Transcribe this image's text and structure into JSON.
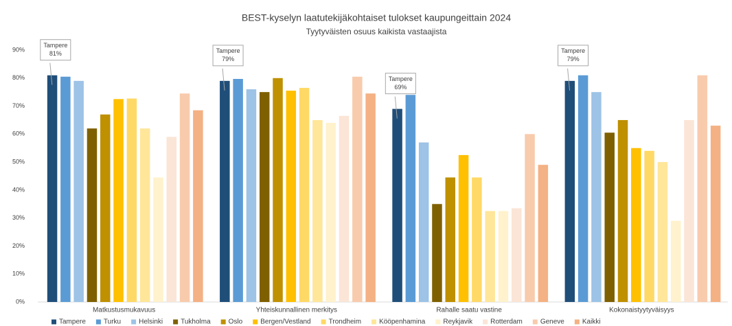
{
  "chart_data": {
    "type": "bar",
    "title": "BEST-kyselyn laatutekijäkohtaiset tulokset kaupungeittain 2024",
    "subtitle": "Tyytyväisten osuus kaikista vastaajista",
    "categories": [
      "Matkustusmukavuus",
      "Yhteiskunnallinen merkitys",
      "Rahalle saatu vastine",
      "Kokonaistyytyväisyys"
    ],
    "series": [
      {
        "name": "Tampere",
        "color": "#1f4e79",
        "values": [
          81,
          79,
          69,
          79
        ],
        "value_labels": [
          "81%",
          "79%",
          "69%",
          "79%"
        ]
      },
      {
        "name": "Turku",
        "color": "#5b9bd5",
        "values": [
          80.5,
          79.7,
          74,
          81
        ]
      },
      {
        "name": "Helsinki",
        "color": "#9dc3e6",
        "values": [
          79,
          76,
          57,
          75
        ]
      },
      {
        "name": "Tukholma",
        "color": "#7f6000",
        "values": [
          62,
          75,
          35,
          60.5
        ]
      },
      {
        "name": "Oslo",
        "color": "#bf9000",
        "values": [
          67,
          80,
          44.5,
          65
        ]
      },
      {
        "name": "Bergen/Vestland",
        "color": "#ffc000",
        "values": [
          72.5,
          75.5,
          52.5,
          55
        ]
      },
      {
        "name": "Trondheim",
        "color": "#ffd966",
        "values": [
          72.7,
          76.5,
          44.5,
          54
        ]
      },
      {
        "name": "Kööpenhamina",
        "color": "#ffe699",
        "values": [
          62,
          65,
          32.5,
          50
        ]
      },
      {
        "name": "Reykjavik",
        "color": "#fff2cc",
        "values": [
          44.5,
          64,
          32.5,
          29
        ]
      },
      {
        "name": "Rotterdam",
        "color": "#fbe5d6",
        "values": [
          59,
          66.5,
          33.5,
          65
        ]
      },
      {
        "name": "Geneve",
        "color": "#f8cbad",
        "values": [
          74.5,
          80.5,
          60,
          81
        ]
      },
      {
        "name": "Kaikki",
        "color": "#f4b183",
        "values": [
          68.5,
          74.5,
          49,
          63
        ]
      }
    ],
    "ylim": [
      0,
      90
    ],
    "yticks": [
      {
        "value": 0,
        "label": "0%"
      },
      {
        "value": 10,
        "label": "10%"
      },
      {
        "value": 20,
        "label": "20%"
      },
      {
        "value": 30,
        "label": "30%"
      },
      {
        "value": 40,
        "label": "40%"
      },
      {
        "value": 50,
        "label": "50%"
      },
      {
        "value": 60,
        "label": "60%"
      },
      {
        "value": 70,
        "label": "70%"
      },
      {
        "value": 80,
        "label": "80%"
      },
      {
        "value": 90,
        "label": "90%"
      }
    ],
    "grid": false,
    "legend": "bottom"
  }
}
